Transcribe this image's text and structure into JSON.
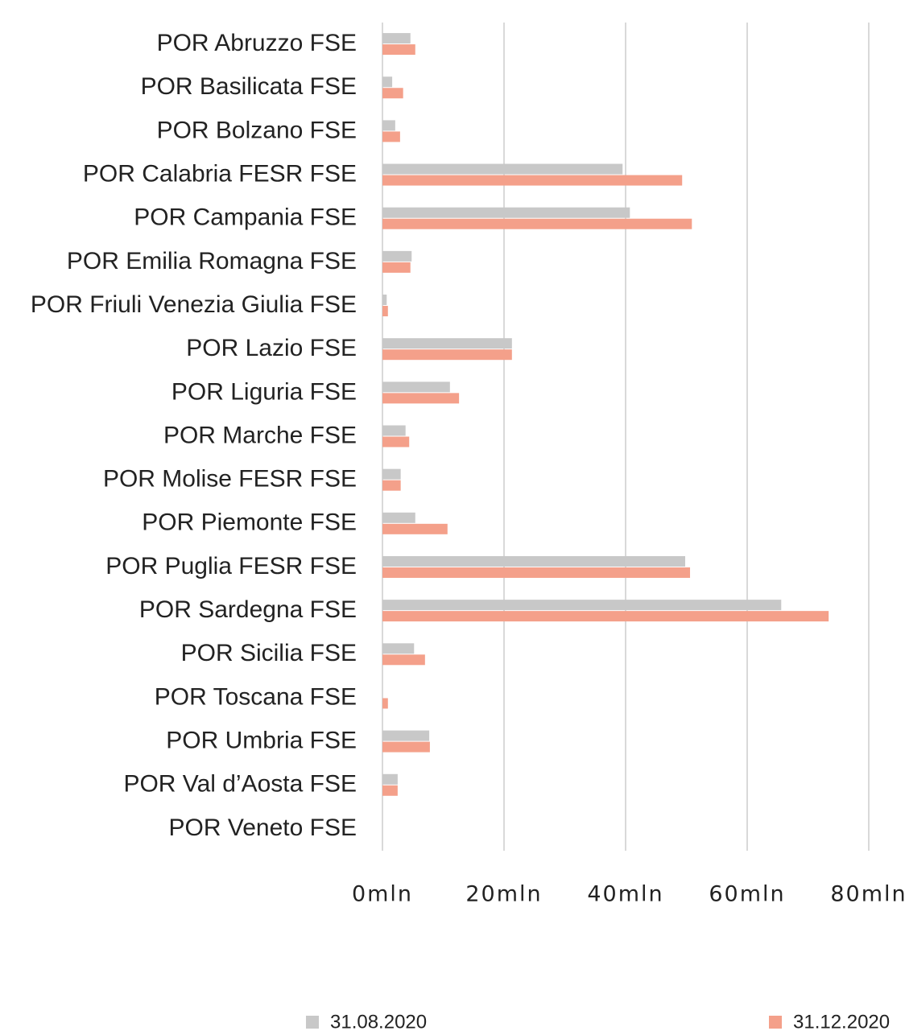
{
  "chart_data": {
    "type": "barh",
    "categories": [
      "POR Abruzzo FSE",
      "POR Basilicata FSE",
      "POR Bolzano FSE",
      "POR Calabria FESR FSE",
      "POR Campania FSE",
      "POR Emilia Romagna FSE",
      "POR Friuli Venezia Giulia FSE",
      "POR Lazio FSE",
      "POR Liguria FSE",
      "POR Marche FSE",
      "POR Molise FESR FSE",
      "POR Piemonte FSE",
      "POR Puglia FESR FSE",
      "POR Sardegna FSE",
      "POR Sicilia FSE",
      "POR Toscana FSE",
      "POR Umbria FSE",
      "POR Val d’Aosta FSE",
      "POR Veneto FSE"
    ],
    "series": [
      {
        "name": "31.08.2020",
        "color": "#c8c8c8",
        "values": [
          4.6,
          1.6,
          2.1,
          39.5,
          40.7,
          4.8,
          0.7,
          21.3,
          11.1,
          3.8,
          3.0,
          5.4,
          49.8,
          65.6,
          5.2,
          0,
          7.7,
          2.5,
          0
        ]
      },
      {
        "name": "31.12.2020",
        "color": "#f4a08a",
        "values": [
          5.4,
          3.4,
          2.9,
          49.3,
          50.9,
          4.6,
          0.9,
          21.3,
          12.6,
          4.4,
          3.0,
          10.7,
          50.6,
          73.4,
          7.0,
          0.9,
          7.8,
          2.5,
          0
        ]
      }
    ],
    "xlim": [
      0,
      80
    ],
    "xticks": [
      {
        "value": 0,
        "label": "0mln"
      },
      {
        "value": 20,
        "label": "20mln"
      },
      {
        "value": 40,
        "label": "40mln"
      },
      {
        "value": 60,
        "label": "60mln"
      },
      {
        "value": 80,
        "label": "80mln"
      }
    ],
    "grid": true
  }
}
